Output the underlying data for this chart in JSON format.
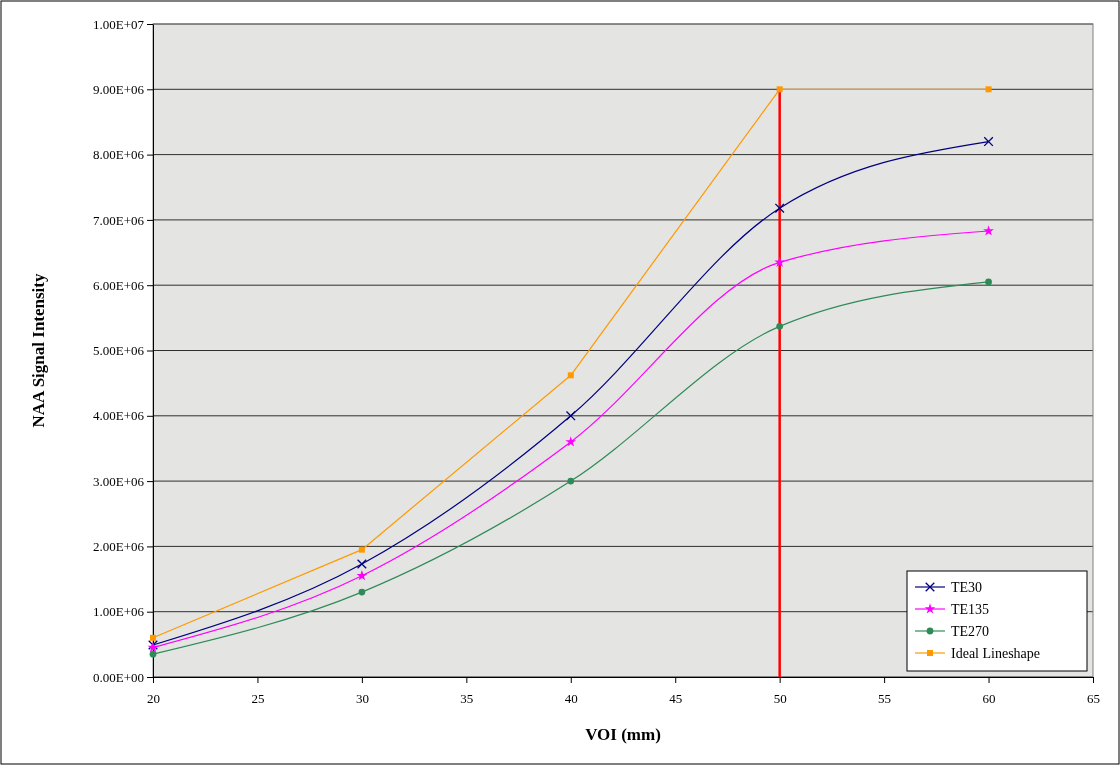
{
  "chart_data": {
    "type": "line",
    "xlabel": "VOI (mm)",
    "ylabel": "NAA Signal Intensity",
    "x": [
      20,
      30,
      40,
      50,
      60
    ],
    "xlim": [
      20,
      65
    ],
    "xticks": [
      20,
      25,
      30,
      35,
      40,
      45,
      50,
      55,
      60,
      65
    ],
    "ylim": [
      0,
      10000000
    ],
    "yticks": [
      {
        "value": 0,
        "label": "0.00E+00"
      },
      {
        "value": 1000000,
        "label": "1.00E+06"
      },
      {
        "value": 2000000,
        "label": "2.00E+06"
      },
      {
        "value": 3000000,
        "label": "3.00E+06"
      },
      {
        "value": 4000000,
        "label": "4.00E+06"
      },
      {
        "value": 5000000,
        "label": "5.00E+06"
      },
      {
        "value": 6000000,
        "label": "6.00E+06"
      },
      {
        "value": 7000000,
        "label": "7.00E+06"
      },
      {
        "value": 8000000,
        "label": "8.00E+06"
      },
      {
        "value": 9000000,
        "label": "9.00E+06"
      },
      {
        "value": 10000000,
        "label": "1.00E+07"
      }
    ],
    "grid": "y",
    "legend": "bottom right",
    "series": [
      {
        "name": "TE30",
        "color": "#000080",
        "marker": "cross",
        "values": [
          490000,
          1730000,
          4000000,
          7180000,
          8200000
        ]
      },
      {
        "name": "TE135",
        "color": "#ff00ff",
        "marker": "star",
        "values": [
          450000,
          1550000,
          3600000,
          6350000,
          6830000
        ]
      },
      {
        "name": "TE270",
        "color": "#2e8b57",
        "marker": "circle",
        "values": [
          350000,
          1300000,
          3000000,
          5370000,
          6050000
        ]
      },
      {
        "name": "Ideal Lineshape",
        "color": "#ff9900",
        "marker": "square",
        "line_style": "solid",
        "values": [
          600000,
          1950000,
          4620000,
          9000000,
          9000000
        ]
      }
    ],
    "ref_lines": [
      {
        "axis": "x",
        "value": 50,
        "color": "#ff0000"
      }
    ]
  }
}
